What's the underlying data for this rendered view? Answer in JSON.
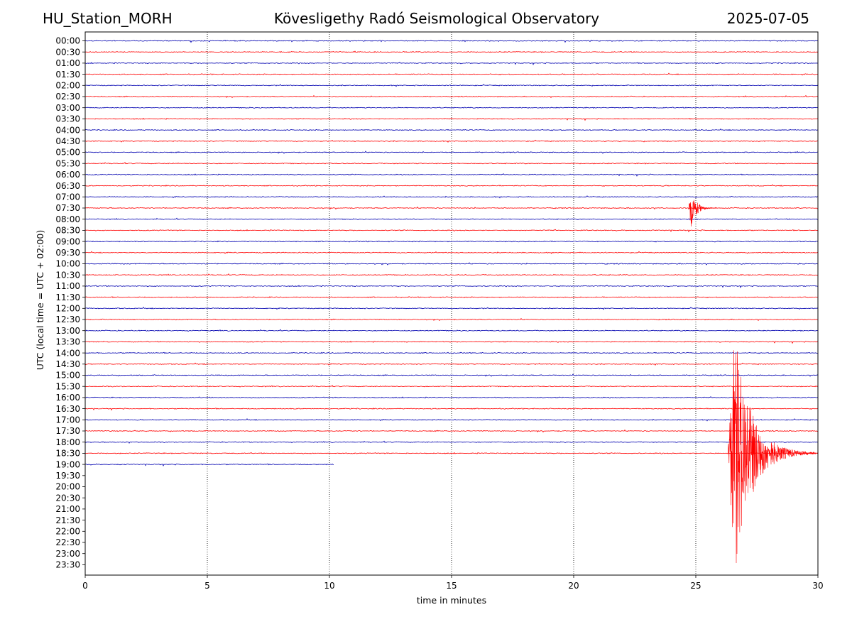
{
  "header": {
    "station": "HU_Station_MORH",
    "observatory": "Kövesligethy Radó Seismological Observatory",
    "date": "2025-07-05"
  },
  "chart_data": {
    "type": "line",
    "title": "Kövesligethy Radó Seismological Observatory",
    "xlabel": "time in minutes",
    "ylabel": "UTC (local time = UTC + 02:00)",
    "xlim": [
      0,
      30
    ],
    "x_ticks": [
      "0",
      "5",
      "10",
      "15",
      "20",
      "25",
      "30"
    ],
    "grid_x": "dotted vertical lines at each x tick",
    "row_labels": [
      "00:00",
      "00:30",
      "01:00",
      "01:30",
      "02:00",
      "02:30",
      "03:00",
      "03:30",
      "04:00",
      "04:30",
      "05:00",
      "05:30",
      "06:00",
      "06:30",
      "07:00",
      "07:30",
      "08:00",
      "08:30",
      "09:00",
      "09:30",
      "10:00",
      "10:30",
      "11:00",
      "11:30",
      "12:00",
      "12:30",
      "13:00",
      "13:30",
      "14:00",
      "14:30",
      "15:00",
      "15:30",
      "16:00",
      "16:30",
      "17:00",
      "17:30",
      "18:00",
      "18:30",
      "19:00",
      "19:30",
      "20:00",
      "20:30",
      "21:00",
      "21:30",
      "22:00",
      "22:30",
      "23:00",
      "23:30"
    ],
    "row_colors": [
      "#0000b0",
      "#ff0000"
    ],
    "last_trace_end_minutes": 10.2,
    "events": [
      {
        "start_row": "07:30",
        "onset_minutes": 24.7,
        "duration_minutes": 1.2,
        "peak_rows": 1.8,
        "color": "#ff0000"
      },
      {
        "start_row": "18:30",
        "onset_minutes": 26.3,
        "duration_minutes": 3.7,
        "peak_rows": 10.8,
        "color": "#ff0000"
      }
    ]
  }
}
